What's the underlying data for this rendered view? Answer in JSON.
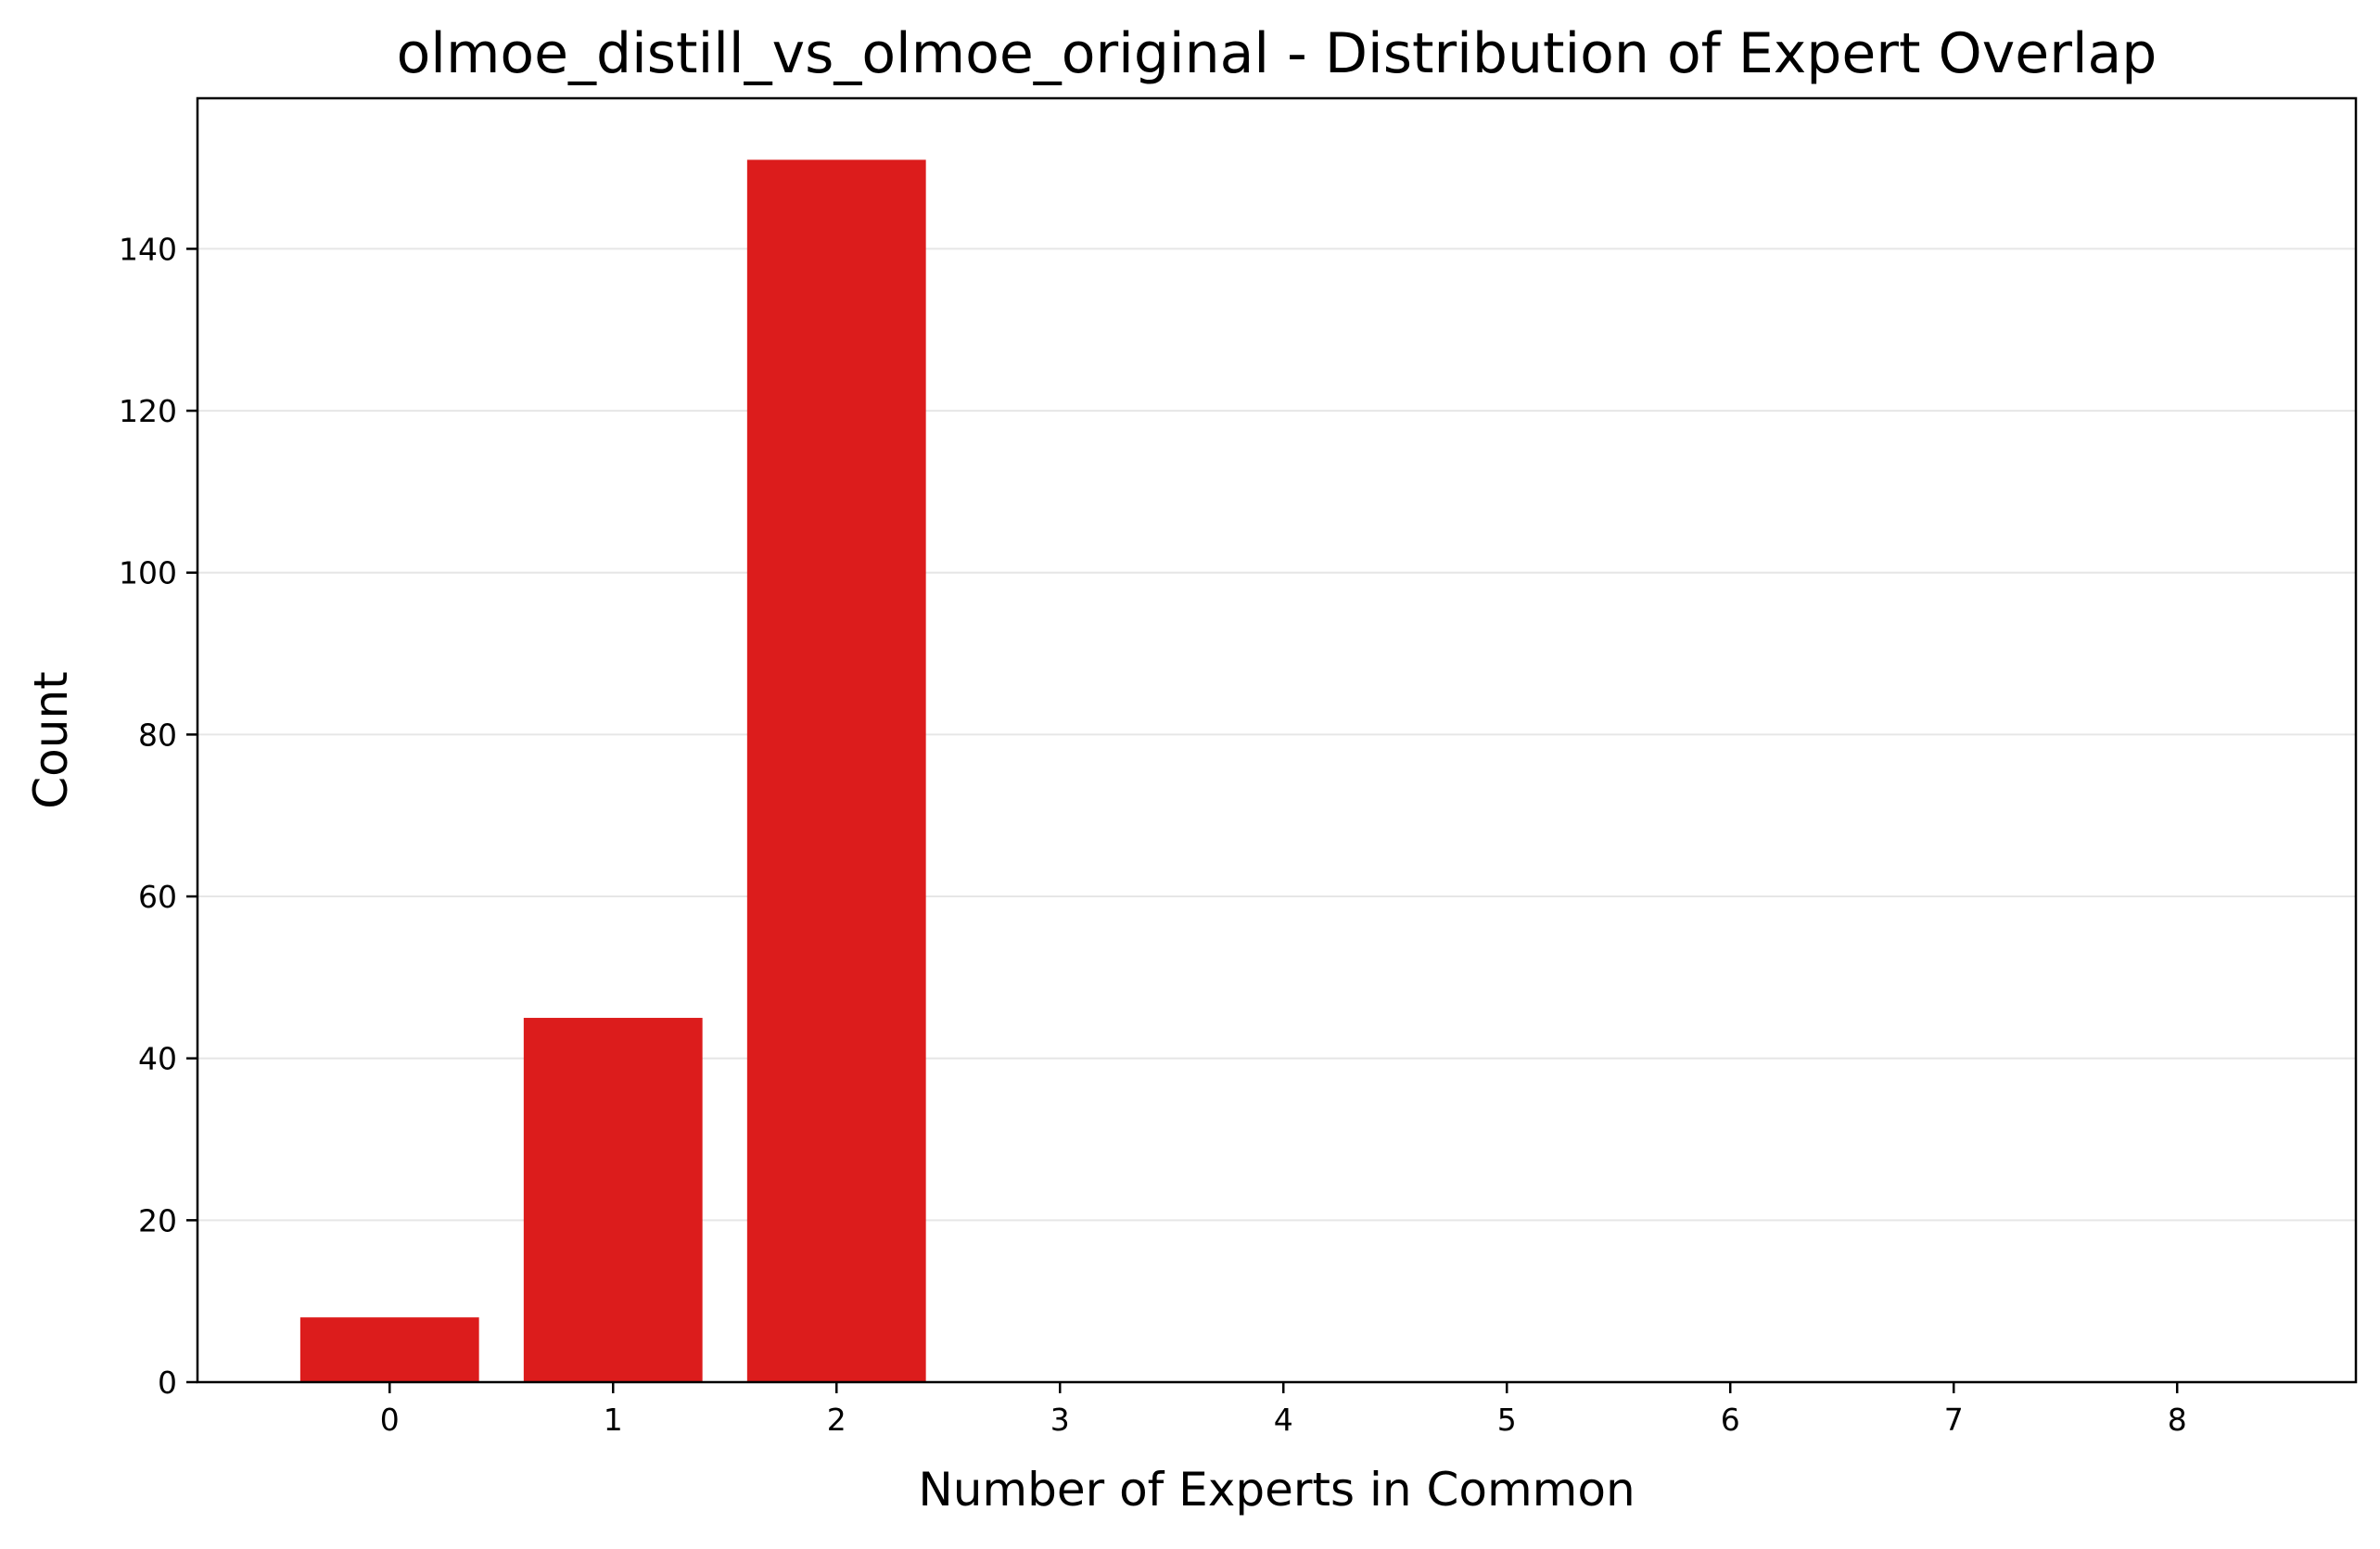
{
  "chart_data": {
    "type": "bar",
    "title": "olmoe_distill_vs_olmoe_original - Distribution of Expert Overlap",
    "xlabel": "Number of Experts in Common",
    "ylabel": "Count",
    "categories": [
      "0",
      "1",
      "2",
      "3",
      "4",
      "5",
      "6",
      "7",
      "8"
    ],
    "x": [
      0,
      1,
      2,
      3,
      4,
      5,
      6,
      7,
      8
    ],
    "values": [
      8,
      45,
      151,
      0,
      0,
      0,
      0,
      0,
      0
    ],
    "xlim": [
      -0.86,
      8.8
    ],
    "ylim": [
      0,
      158.6
    ],
    "yticks": [
      0,
      20,
      40,
      60,
      80,
      100,
      120,
      140
    ],
    "grid": "y-only",
    "legend": "none",
    "bar_width": 0.8,
    "colors": {
      "bar": "#dc1c1c",
      "grid": "#e6e6e6",
      "axis": "#000000",
      "background": "#ffffff"
    }
  }
}
